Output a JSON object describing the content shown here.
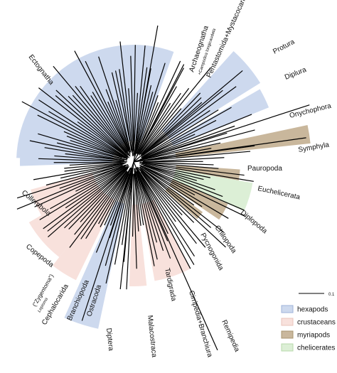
{
  "labels": {
    "ectognatha": "Ectognatha",
    "archaeognatha": "Archaeognatha",
    "campodea": "+Campodea longicaudata",
    "pentastomida": "Pentastomida+Mystacocarida",
    "protura": "Protura",
    "diplura": "Diplura",
    "onychophora": "Onychophora",
    "symphyla": "Symphyla",
    "pauropoda": "Pauropoda",
    "euchelicerata": "Euchelicerata",
    "diplopoda": "Diplopoda",
    "chilopoda": "Chilopoda",
    "pycnogonida": "Pycnogonida",
    "tardigrada": "Tardigrada",
    "cirripedia": "Cirripedia+Branchiura",
    "remipedia": "Remipedia",
    "malacostraca": "Malacostraca",
    "diptera": "Diptera",
    "ostracoda": "Ostracoda",
    "branchiopoda": "Branchiopoda",
    "cephalocarida": "Cephalocarida",
    "zygentoma": "(\"Zygentoma\")",
    "lepisma": "Lepisma",
    "copepoda": "Copepoda",
    "collembola": "Collembola"
  },
  "legend": {
    "items": [
      "hexapods",
      "crustaceans",
      "myriapods",
      "chelicerates"
    ]
  },
  "scale": "0.1"
}
